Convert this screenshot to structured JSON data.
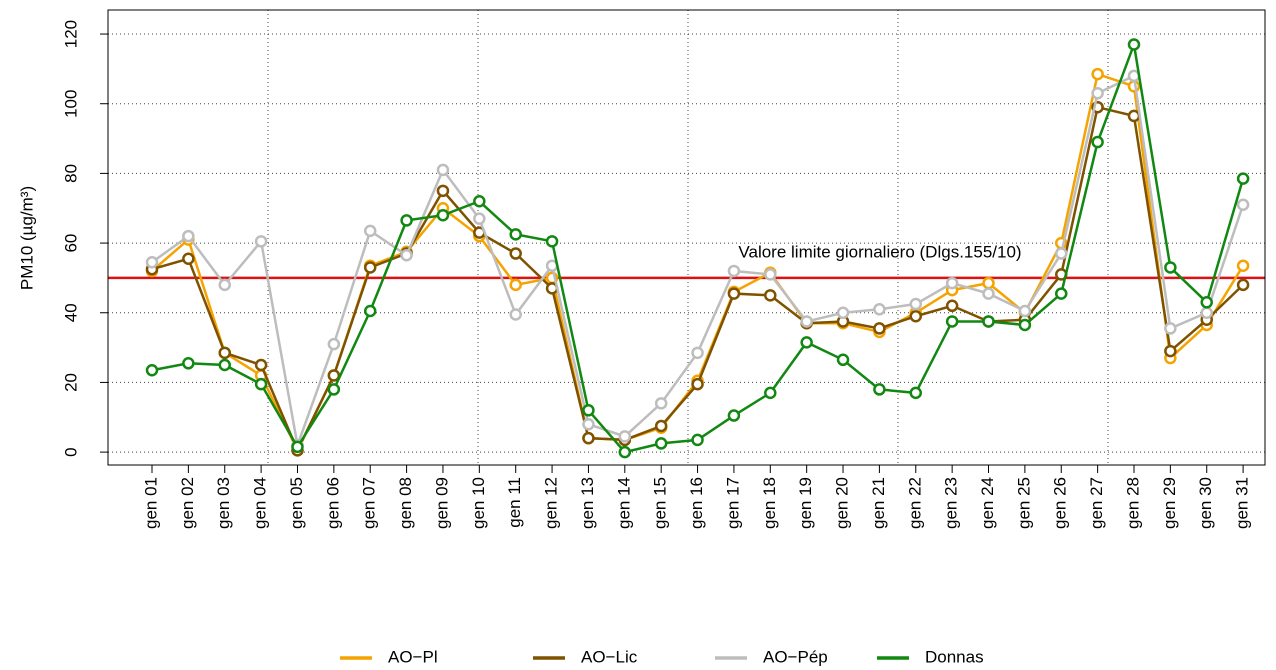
{
  "chart_data": {
    "type": "line",
    "y_label": "PM10 (µg/m³)",
    "categories": [
      "gen 01",
      "gen 02",
      "gen 03",
      "gen 04",
      "gen 05",
      "gen 06",
      "gen 07",
      "gen 08",
      "gen 09",
      "gen 10",
      "gen 11",
      "gen 12",
      "gen 13",
      "gen 14",
      "gen 15",
      "gen 16",
      "gen 17",
      "gen 18",
      "gen 19",
      "gen 20",
      "gen 21",
      "gen 22",
      "gen 23",
      "gen 24",
      "gen 25",
      "gen 26",
      "gen 27",
      "gen 28",
      "gen 29",
      "gen 30",
      "gen 31"
    ],
    "series": [
      {
        "name": "AO−Pl",
        "color": "#f5a300",
        "values": [
          52,
          61,
          28.5,
          22,
          0.5,
          22,
          53.5,
          57.5,
          70,
          62,
          48,
          50,
          4,
          3.5,
          7,
          20.5,
          46,
          51.5,
          37,
          37,
          34.5,
          40,
          46.5,
          48.5,
          40,
          60,
          108.5,
          105,
          27,
          36.5,
          53.5
        ]
      },
      {
        "name": "AO−Lic",
        "color": "#7f5200",
        "values": [
          52.5,
          55.5,
          28.5,
          25,
          0.5,
          22,
          53,
          57,
          75,
          63,
          57,
          47,
          4,
          3.5,
          7.5,
          19.5,
          45.5,
          45,
          37,
          37.5,
          35.5,
          39,
          42,
          37.5,
          38,
          51,
          99,
          96.5,
          29,
          38,
          48
        ]
      },
      {
        "name": "AO−Pép",
        "color": "#bdbdbd",
        "values": [
          54.5,
          62,
          48,
          60.5,
          2,
          31,
          63.5,
          56.5,
          81,
          67,
          39.5,
          53.5,
          8,
          4.5,
          14,
          28.5,
          52,
          51,
          37.5,
          40,
          41,
          42.5,
          48.5,
          45.5,
          40.5,
          57,
          103,
          108,
          35.5,
          40,
          71
        ]
      },
      {
        "name": "Donnas",
        "color": "#118811",
        "values": [
          23.5,
          25.5,
          25,
          19.5,
          1.5,
          18,
          40.5,
          66.5,
          68,
          72,
          62.5,
          60.5,
          12,
          0,
          2.5,
          3.5,
          10.5,
          17,
          31.5,
          26.5,
          18,
          17,
          37.5,
          37.5,
          36.5,
          45.5,
          89,
          117,
          53,
          43,
          78.5
        ]
      }
    ],
    "ylim": [
      -3.7,
      126.9
    ],
    "yticks": [
      0,
      20,
      40,
      60,
      80,
      100,
      120
    ],
    "grid": true,
    "legend": "bottom",
    "hline": {
      "value": 50,
      "label": "Valore limite giornaliero (Dlgs.155/10)",
      "color": "#dd1111"
    }
  }
}
